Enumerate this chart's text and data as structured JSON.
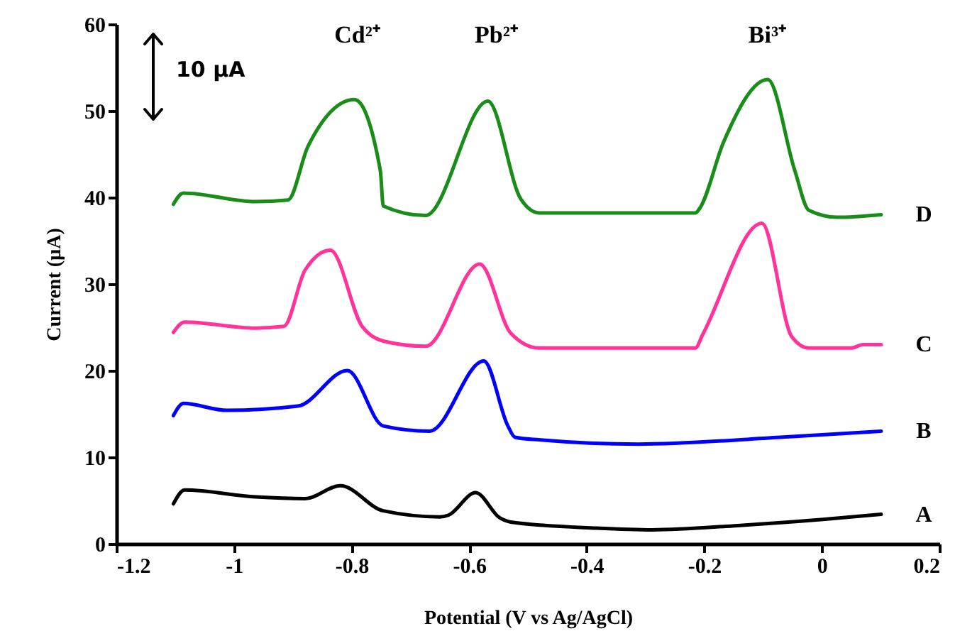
{
  "chart_data": {
    "type": "line",
    "xlabel": "Potential (V vs Ag/AgCl)",
    "ylabel": "Current (µA)",
    "xlim": [
      -1.2,
      0.2
    ],
    "xticks": [
      -1.2,
      -1,
      -0.8,
      -0.6,
      -0.4,
      -0.2,
      0,
      0.2
    ],
    "ylim": [
      0,
      60
    ],
    "yticks": [
      0,
      10,
      20,
      30,
      40,
      50,
      60
    ],
    "grid": false,
    "marker": "none",
    "line_style": "solid",
    "annotations": [
      "Cd²⁺",
      "Pb²⁺",
      "Bi³⁺",
      "10 µA"
    ],
    "series": [
      {
        "name": "D",
        "color": "#1a8c1a",
        "x": [
          -1.103,
          -1.086,
          -0.963,
          -0.908,
          -0.874,
          -0.795,
          -0.751,
          -0.746,
          -0.674,
          -0.568,
          -0.512,
          -0.481,
          -0.215,
          -0.208,
          -0.167,
          -0.092,
          -0.046,
          -0.022,
          0.026,
          0.101
        ],
        "values": [
          39.2,
          40.5,
          39.5,
          39.7,
          45.9,
          51.3,
          43.1,
          39.0,
          37.9,
          51.1,
          39.8,
          38.2,
          38.2,
          38.7,
          46.4,
          53.6,
          43.1,
          38.5,
          37.7,
          38.0
        ]
      },
      {
        "name": "C",
        "color": "#ff3399",
        "x": [
          -1.103,
          -1.084,
          -0.963,
          -0.915,
          -0.879,
          -0.836,
          -0.782,
          -0.746,
          -0.674,
          -0.582,
          -0.529,
          -0.481,
          -0.215,
          -0.203,
          -0.102,
          -0.051,
          -0.022,
          0.05,
          0.07,
          0.101
        ],
        "values": [
          24.4,
          25.6,
          24.9,
          25.1,
          31.6,
          33.9,
          25.1,
          23.4,
          22.8,
          32.3,
          24.3,
          22.6,
          22.6,
          24.1,
          37.0,
          23.9,
          22.6,
          22.6,
          23.0,
          23.0
        ]
      },
      {
        "name": "B",
        "color": "#0000ff",
        "x": [
          -1.103,
          -1.086,
          -1.012,
          -0.891,
          -0.807,
          -0.746,
          -0.667,
          -0.575,
          -0.534,
          -0.522,
          -0.481,
          -0.312,
          -0.07,
          0.101
        ],
        "values": [
          14.8,
          16.2,
          15.4,
          15.9,
          20.0,
          13.6,
          13.0,
          21.1,
          13.6,
          12.3,
          12.0,
          11.5,
          12.3,
          13.0
        ]
      },
      {
        "name": "A",
        "color": "#000000",
        "x": [
          -1.103,
          -1.084,
          -0.963,
          -0.879,
          -0.819,
          -0.746,
          -0.65,
          -0.635,
          -0.589,
          -0.548,
          -0.529,
          -0.384,
          -0.288,
          -0.143,
          0.002,
          0.101
        ],
        "values": [
          4.6,
          6.2,
          5.4,
          5.2,
          6.7,
          3.8,
          3.1,
          3.3,
          5.9,
          3.0,
          2.5,
          1.8,
          1.6,
          2.1,
          2.8,
          3.4
        ]
      }
    ]
  }
}
